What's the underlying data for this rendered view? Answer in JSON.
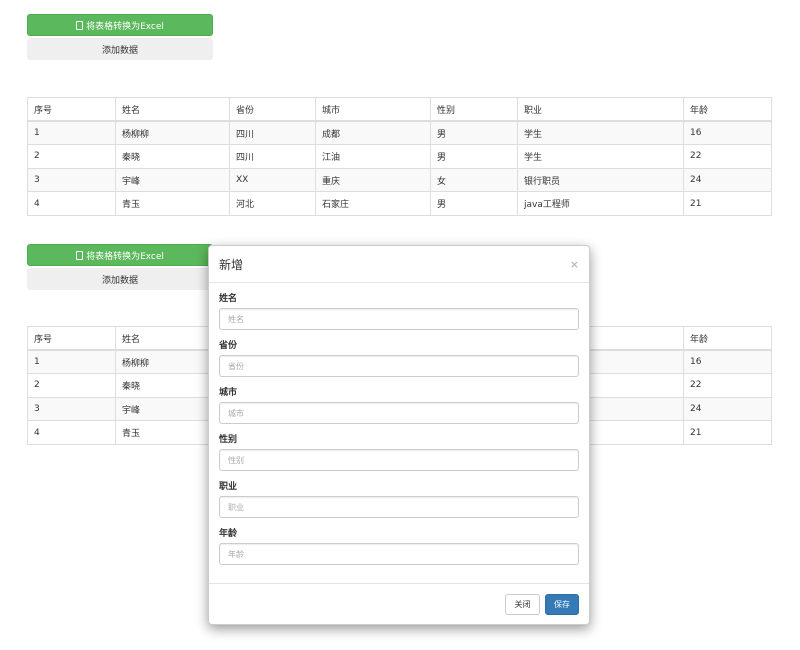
{
  "toolbar": {
    "export_label": "将表格转换为Excel",
    "add_label": "添加数据"
  },
  "table": {
    "headers": [
      "序号",
      "姓名",
      "省份",
      "城市",
      "性别",
      "职业",
      "年龄"
    ],
    "rows": [
      [
        "1",
        "杨柳柳",
        "四川",
        "成都",
        "男",
        "学生",
        "16"
      ],
      [
        "2",
        "秦晓",
        "四川",
        "江油",
        "男",
        "学生",
        "22"
      ],
      [
        "3",
        "宇峰",
        "XX",
        "重庆",
        "女",
        "银行职员",
        "24"
      ],
      [
        "4",
        "青玉",
        "河北",
        "石家庄",
        "男",
        "java工程师",
        "21"
      ]
    ]
  },
  "modal": {
    "title": "新增",
    "close_glyph": "×",
    "fields": [
      {
        "label": "姓名",
        "placeholder": "姓名"
      },
      {
        "label": "省份",
        "placeholder": "省份"
      },
      {
        "label": "城市",
        "placeholder": "城市"
      },
      {
        "label": "性别",
        "placeholder": "性别"
      },
      {
        "label": "职业",
        "placeholder": "职业"
      },
      {
        "label": "年龄",
        "placeholder": "年龄"
      }
    ],
    "close_label": "关闭",
    "save_label": "保存"
  }
}
